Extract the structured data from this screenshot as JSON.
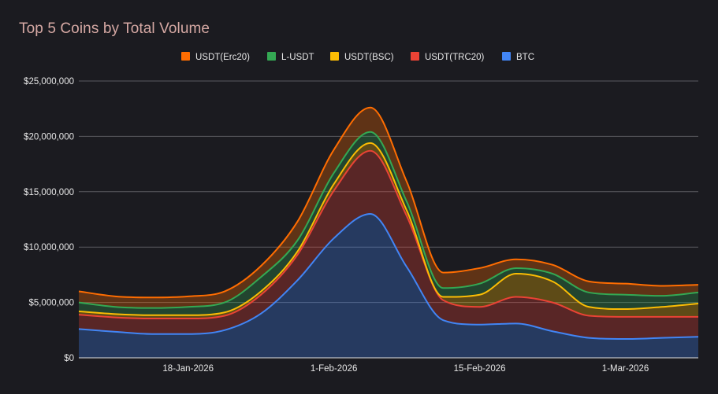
{
  "chart_data": {
    "type": "area",
    "stacked": true,
    "title": "Top 5 Coins by Total Volume",
    "xlabel": "",
    "ylabel": "",
    "x": [
      "8-Jan-2026",
      "11-Jan-2026",
      "15-Jan-2026",
      "18-Jan-2026",
      "22-Jan-2026",
      "25-Jan-2026",
      "29-Jan-2026",
      "1-Feb-2026",
      "5-Feb-2026",
      "8-Feb-2026",
      "12-Feb-2026",
      "15-Feb-2026",
      "19-Feb-2026",
      "22-Feb-2026",
      "26-Feb-2026",
      "1-Mar-2026",
      "5-Mar-2026",
      "8-Mar-2026"
    ],
    "x_ticks": [
      "18-Jan-2026",
      "1-Feb-2026",
      "15-Feb-2026",
      "1-Mar-2026"
    ],
    "y_ticks": [
      "$0",
      "$5,000,000",
      "$10,000,000",
      "$15,000,000",
      "$20,000,000",
      "$25,000,000"
    ],
    "ylim": [
      0,
      25000000
    ],
    "grid": true,
    "legend_position": "top-center",
    "series": [
      {
        "name": "BTC",
        "color": "#4285f4",
        "values": [
          2600000,
          2350000,
          2150000,
          2150000,
          2500000,
          4000000,
          7000000,
          10800000,
          13000000,
          8200000,
          3400000,
          3000000,
          3100000,
          2400000,
          1800000,
          1700000,
          1800000,
          1900000
        ]
      },
      {
        "name": "USDT(TRC20)",
        "color": "#ea4335",
        "values": [
          1300000,
          1300000,
          1400000,
          1400000,
          1300000,
          1700000,
          2300000,
          4300000,
          5700000,
          4600000,
          1800000,
          1600000,
          2400000,
          2600000,
          2000000,
          2000000,
          1900000,
          1800000
        ]
      },
      {
        "name": "USDT(BSC)",
        "color": "#fbbc04",
        "values": [
          300000,
          300000,
          300000,
          300000,
          300000,
          300000,
          300000,
          600000,
          700000,
          500000,
          300000,
          1100000,
          2100000,
          1900000,
          800000,
          700000,
          900000,
          1200000
        ]
      },
      {
        "name": "L-USDT",
        "color": "#34a853",
        "values": [
          800000,
          650000,
          650000,
          750000,
          900000,
          1300000,
          1000000,
          1000000,
          1000000,
          800000,
          800000,
          1000000,
          500000,
          700000,
          1300000,
          1300000,
          1000000,
          1000000
        ]
      },
      {
        "name": "USDT(Erc20)",
        "color": "#ff6d01",
        "values": [
          1000000,
          950000,
          950000,
          950000,
          1000000,
          1000000,
          1700000,
          2100000,
          2200000,
          1800000,
          1400000,
          1400000,
          800000,
          800000,
          1000000,
          1000000,
          900000,
          700000
        ]
      }
    ]
  },
  "legend_order": [
    "USDT(Erc20)",
    "L-USDT",
    "USDT(BSC)",
    "USDT(TRC20)",
    "BTC"
  ]
}
